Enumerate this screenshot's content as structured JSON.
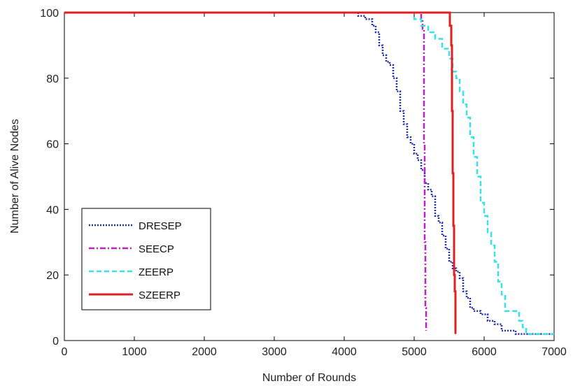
{
  "chart_data": {
    "type": "line",
    "title": "",
    "xlabel": "Number of Rounds",
    "ylabel": "Number of Alive Nodes",
    "xlim": [
      0,
      7000
    ],
    "ylim": [
      0,
      100
    ],
    "x_ticks": [
      "0",
      "1000",
      "2000",
      "3000",
      "4000",
      "5000",
      "6000",
      "7000"
    ],
    "y_ticks": [
      "0",
      "20",
      "40",
      "60",
      "80",
      "100"
    ],
    "grid": false,
    "legend_position": "lower-left",
    "series": [
      {
        "name": "DRESEP",
        "color": "#1f2fb0",
        "style": "dotted",
        "points": [
          [
            0,
            100
          ],
          [
            4100,
            100
          ],
          [
            4200,
            99
          ],
          [
            4300,
            98
          ],
          [
            4400,
            96
          ],
          [
            4450,
            94
          ],
          [
            4500,
            90
          ],
          [
            4550,
            87
          ],
          [
            4600,
            85
          ],
          [
            4650,
            84
          ],
          [
            4700,
            80
          ],
          [
            4750,
            76
          ],
          [
            4800,
            70
          ],
          [
            4850,
            66
          ],
          [
            4900,
            62
          ],
          [
            4950,
            60
          ],
          [
            5000,
            57
          ],
          [
            5050,
            55
          ],
          [
            5100,
            52
          ],
          [
            5150,
            48
          ],
          [
            5200,
            46
          ],
          [
            5250,
            44
          ],
          [
            5300,
            38
          ],
          [
            5350,
            36
          ],
          [
            5400,
            32
          ],
          [
            5450,
            28
          ],
          [
            5500,
            24
          ],
          [
            5550,
            22
          ],
          [
            5600,
            21
          ],
          [
            5650,
            19
          ],
          [
            5700,
            15
          ],
          [
            5750,
            13
          ],
          [
            5800,
            10
          ],
          [
            5850,
            9
          ],
          [
            5950,
            8
          ],
          [
            6050,
            6
          ],
          [
            6150,
            5
          ],
          [
            6250,
            3
          ],
          [
            6450,
            2
          ],
          [
            7000,
            2
          ]
        ]
      },
      {
        "name": "SEECP",
        "color": "#bf1fbf",
        "style": "dashdot",
        "points": [
          [
            0,
            100
          ],
          [
            5080,
            100
          ],
          [
            5100,
            98
          ],
          [
            5120,
            95
          ],
          [
            5140,
            60
          ],
          [
            5150,
            30
          ],
          [
            5160,
            10
          ],
          [
            5170,
            3
          ]
        ]
      },
      {
        "name": "ZEERP",
        "color": "#38e0e8",
        "style": "dashed",
        "points": [
          [
            0,
            100
          ],
          [
            4900,
            100
          ],
          [
            5000,
            98
          ],
          [
            5100,
            96
          ],
          [
            5200,
            94
          ],
          [
            5300,
            92
          ],
          [
            5400,
            89
          ],
          [
            5500,
            86
          ],
          [
            5550,
            82
          ],
          [
            5600,
            80
          ],
          [
            5650,
            76
          ],
          [
            5700,
            72
          ],
          [
            5750,
            68
          ],
          [
            5800,
            62
          ],
          [
            5850,
            56
          ],
          [
            5900,
            50
          ],
          [
            5950,
            42
          ],
          [
            6000,
            38
          ],
          [
            6050,
            33
          ],
          [
            6100,
            29
          ],
          [
            6150,
            24
          ],
          [
            6200,
            18
          ],
          [
            6250,
            14
          ],
          [
            6300,
            9
          ],
          [
            6450,
            9
          ],
          [
            6500,
            6
          ],
          [
            6550,
            4
          ],
          [
            6600,
            2
          ],
          [
            7000,
            2
          ]
        ]
      },
      {
        "name": "SZEERP",
        "color": "#e02020",
        "style": "solid",
        "points": [
          [
            0,
            100
          ],
          [
            5500,
            100
          ],
          [
            5510,
            96
          ],
          [
            5530,
            90
          ],
          [
            5540,
            70
          ],
          [
            5550,
            51
          ],
          [
            5560,
            35
          ],
          [
            5570,
            20
          ],
          [
            5580,
            15
          ],
          [
            5590,
            2
          ]
        ]
      }
    ]
  }
}
